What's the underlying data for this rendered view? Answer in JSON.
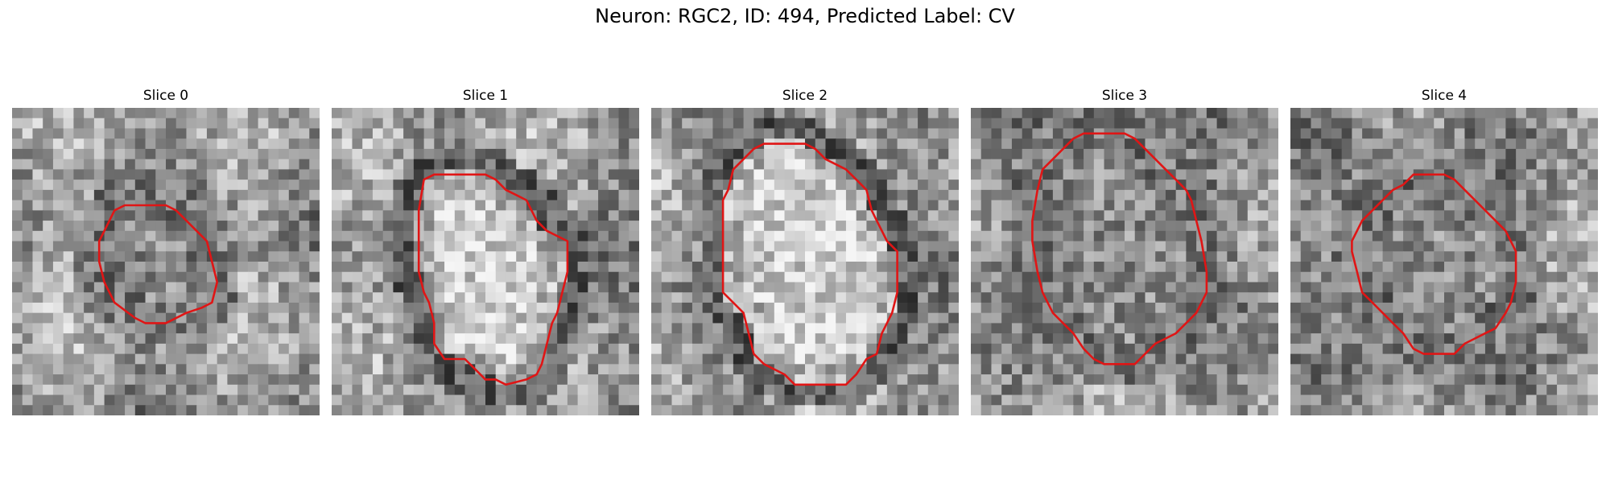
{
  "figure": {
    "title": "Neuron: RGC2, ID: 494, Predicted Label: CV"
  },
  "colors": {
    "contour": "#e01515"
  },
  "grid": {
    "rows": 30,
    "cols": 30
  },
  "slices": [
    {
      "title": "Slice 0",
      "contour": [
        [
          10,
          10
        ],
        [
          11,
          9.5
        ],
        [
          12,
          9.5
        ],
        [
          13,
          9.5
        ],
        [
          15,
          9.5
        ],
        [
          16,
          10
        ],
        [
          17,
          11
        ],
        [
          19,
          13
        ],
        [
          19.5,
          15
        ],
        [
          20,
          17
        ],
        [
          19.5,
          19
        ],
        [
          18.5,
          19.5
        ],
        [
          17,
          20
        ],
        [
          15,
          21
        ],
        [
          13,
          21
        ],
        [
          12,
          20.5
        ],
        [
          10,
          19
        ],
        [
          9,
          17
        ],
        [
          8.5,
          15
        ],
        [
          8.5,
          13
        ],
        [
          9,
          12
        ]
      ],
      "seed": 11
    },
    {
      "title": "Slice 1",
      "contour": [
        [
          9,
          7
        ],
        [
          10,
          6.5
        ],
        [
          12,
          6.5
        ],
        [
          15,
          6.5
        ],
        [
          16,
          7
        ],
        [
          17,
          8
        ],
        [
          18,
          8.5
        ],
        [
          19,
          9
        ],
        [
          20,
          11
        ],
        [
          21,
          12
        ],
        [
          23,
          13
        ],
        [
          23,
          16
        ],
        [
          22.5,
          18
        ],
        [
          22,
          20
        ],
        [
          21.5,
          21
        ],
        [
          21,
          23
        ],
        [
          20.5,
          25
        ],
        [
          20,
          26
        ],
        [
          19,
          26.5
        ],
        [
          17,
          27
        ],
        [
          16,
          26.5
        ],
        [
          15,
          26.5
        ],
        [
          14,
          25.5
        ],
        [
          13,
          24.5
        ],
        [
          11,
          24.5
        ],
        [
          10,
          23
        ],
        [
          10,
          21
        ],
        [
          9.5,
          19
        ],
        [
          9,
          18
        ],
        [
          8.5,
          16
        ],
        [
          8.5,
          13
        ],
        [
          8.5,
          10
        ]
      ],
      "seed": 23
    },
    {
      "title": "Slice 2",
      "contour": [
        [
          8,
          6
        ],
        [
          9,
          5
        ],
        [
          10,
          4
        ],
        [
          11,
          3.5
        ],
        [
          12,
          3.5
        ],
        [
          15,
          3.5
        ],
        [
          16,
          4
        ],
        [
          17,
          5
        ],
        [
          19,
          6
        ],
        [
          20,
          7
        ],
        [
          21,
          8
        ],
        [
          21.5,
          10
        ],
        [
          22,
          11
        ],
        [
          23,
          13
        ],
        [
          24,
          14
        ],
        [
          24,
          18
        ],
        [
          23.5,
          20
        ],
        [
          22.5,
          22
        ],
        [
          22,
          24
        ],
        [
          21,
          24.5
        ],
        [
          20,
          26
        ],
        [
          19,
          27
        ],
        [
          17,
          27
        ],
        [
          14,
          27
        ],
        [
          13,
          26
        ],
        [
          11,
          25
        ],
        [
          10,
          24
        ],
        [
          9.5,
          22
        ],
        [
          9,
          20
        ],
        [
          8,
          19
        ],
        [
          7,
          18
        ],
        [
          7,
          15
        ],
        [
          7,
          13
        ],
        [
          7,
          9
        ],
        [
          7.5,
          8
        ]
      ],
      "seed": 37
    },
    {
      "title": "Slice 3",
      "contour": [
        [
          9,
          4
        ],
        [
          10,
          3
        ],
        [
          11,
          2.5
        ],
        [
          13,
          2.5
        ],
        [
          15,
          2.5
        ],
        [
          16,
          3
        ],
        [
          17,
          4
        ],
        [
          18,
          5
        ],
        [
          19,
          6
        ],
        [
          20,
          7
        ],
        [
          21,
          8
        ],
        [
          21.5,
          9
        ],
        [
          22,
          11
        ],
        [
          22.5,
          13
        ],
        [
          23,
          16
        ],
        [
          23,
          18
        ],
        [
          22,
          20
        ],
        [
          21,
          21
        ],
        [
          20,
          22
        ],
        [
          18,
          23
        ],
        [
          17,
          24
        ],
        [
          16,
          25
        ],
        [
          13,
          25
        ],
        [
          12,
          24.5
        ],
        [
          11,
          23.5
        ],
        [
          10,
          22
        ],
        [
          9,
          21
        ],
        [
          8,
          20
        ],
        [
          7,
          18
        ],
        [
          6.5,
          16
        ],
        [
          6,
          13
        ],
        [
          6,
          11
        ],
        [
          6.5,
          8
        ],
        [
          7,
          6
        ],
        [
          8,
          5
        ]
      ],
      "seed": 53
    },
    {
      "title": "Slice 4",
      "contour": [
        [
          8,
          10
        ],
        [
          10,
          8
        ],
        [
          11,
          7.5
        ],
        [
          12,
          6.5
        ],
        [
          13,
          6.5
        ],
        [
          15,
          6.5
        ],
        [
          16,
          7
        ],
        [
          17,
          8
        ],
        [
          18,
          9
        ],
        [
          20,
          11
        ],
        [
          21,
          12
        ],
        [
          22,
          14
        ],
        [
          22,
          17
        ],
        [
          21.5,
          19
        ],
        [
          21,
          20
        ],
        [
          20,
          21.5
        ],
        [
          19,
          22
        ],
        [
          18,
          22.5
        ],
        [
          17,
          23
        ],
        [
          16,
          24
        ],
        [
          13,
          24
        ],
        [
          12,
          23.5
        ],
        [
          11,
          22
        ],
        [
          10,
          21
        ],
        [
          9,
          20
        ],
        [
          8,
          19
        ],
        [
          7,
          18
        ],
        [
          6.5,
          16
        ],
        [
          6,
          14
        ],
        [
          6,
          13
        ],
        [
          7,
          11
        ]
      ],
      "seed": 71
    }
  ]
}
